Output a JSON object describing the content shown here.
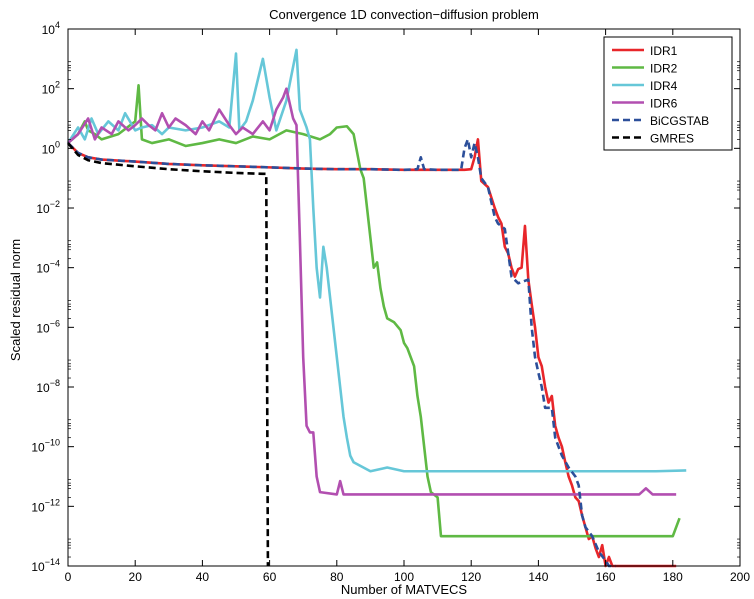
{
  "chart_data": {
    "type": "line",
    "title": "Convergence 1D convection−diffusion problem",
    "xlabel": "Number of MATVECS",
    "ylabel": "Scaled residual norm",
    "xlim": [
      0,
      200
    ],
    "ylim_log10": [
      -14,
      4
    ],
    "y_scale": "log",
    "x_ticks": [
      0,
      20,
      40,
      60,
      80,
      100,
      120,
      140,
      160,
      180,
      200
    ],
    "x_tick_labels": [
      "0",
      "20",
      "40",
      "60",
      "80",
      "100",
      "120",
      "140",
      "160",
      "180",
      "200"
    ],
    "y_ticks_log10": [
      -14,
      -12,
      -10,
      -8,
      -6,
      -4,
      -2,
      0,
      2,
      4
    ],
    "y_tick_labels": [
      {
        "base": "10",
        "exp": "−14"
      },
      {
        "base": "10",
        "exp": "−12"
      },
      {
        "base": "10",
        "exp": "−10"
      },
      {
        "base": "10",
        "exp": "−8"
      },
      {
        "base": "10",
        "exp": "−6"
      },
      {
        "base": "10",
        "exp": "−4"
      },
      {
        "base": "10",
        "exp": "−2"
      },
      {
        "base": "10",
        "exp": "0"
      },
      {
        "base": "10",
        "exp": "2"
      },
      {
        "base": "10",
        "exp": "4"
      }
    ],
    "grid": false,
    "legend_position": "top-right",
    "series": [
      {
        "name": "IDR1",
        "color": "#e8262a",
        "dash": "solid",
        "points": [
          [
            0,
            1.5
          ],
          [
            3,
            0.7
          ],
          [
            6,
            0.5
          ],
          [
            10,
            0.42
          ],
          [
            20,
            0.36
          ],
          [
            30,
            0.3
          ],
          [
            40,
            0.27
          ],
          [
            50,
            0.25
          ],
          [
            60,
            0.23
          ],
          [
            70,
            0.21
          ],
          [
            80,
            0.2
          ],
          [
            90,
            0.2
          ],
          [
            100,
            0.19
          ],
          [
            110,
            0.19
          ],
          [
            118,
            0.19
          ],
          [
            120,
            0.2
          ],
          [
            121,
            0.5
          ],
          [
            122,
            2.0
          ],
          [
            123,
            0.08
          ],
          [
            125,
            0.05
          ],
          [
            127,
            0.01
          ],
          [
            128,
            0.005
          ],
          [
            129,
            0.003
          ],
          [
            130,
            0.0005
          ],
          [
            131,
            0.0003
          ],
          [
            132,
            0.0001
          ],
          [
            133,
            5e-05
          ],
          [
            134,
            9e-05
          ],
          [
            135,
            0.0001
          ],
          [
            136,
            0.0025
          ],
          [
            137,
            4e-05
          ],
          [
            138,
            6e-06
          ],
          [
            139,
            1e-06
          ],
          [
            140,
            1e-07
          ],
          [
            141,
            5e-08
          ],
          [
            142,
            1e-08
          ],
          [
            143,
            3e-09
          ],
          [
            144,
            5e-09
          ],
          [
            145,
            5e-10
          ],
          [
            146,
            2e-10
          ],
          [
            147,
            1e-10
          ],
          [
            148,
            3e-11
          ],
          [
            149,
            1e-11
          ],
          [
            150,
            5e-12
          ],
          [
            151,
            2e-12
          ],
          [
            152,
            1.5e-12
          ],
          [
            153,
            5e-13
          ],
          [
            154,
            2e-13
          ],
          [
            155,
            8e-14
          ],
          [
            156,
            1e-13
          ],
          [
            157,
            4e-14
          ],
          [
            158,
            2e-14
          ],
          [
            159,
            5e-14
          ],
          [
            160,
            1e-14
          ],
          [
            161,
            2e-14
          ],
          [
            162,
            5e-15
          ],
          [
            163,
            3e-15
          ],
          [
            164,
            2e-15
          ],
          [
            170,
            2e-15
          ],
          [
            175,
            1.8e-15
          ],
          [
            181,
            1.8e-15
          ]
        ]
      },
      {
        "name": "IDR2",
        "color": "#5fb944",
        "dash": "solid",
        "points": [
          [
            0,
            1.5
          ],
          [
            3,
            3
          ],
          [
            5,
            8
          ],
          [
            6,
            4
          ],
          [
            8,
            3
          ],
          [
            10,
            2
          ],
          [
            15,
            3
          ],
          [
            20,
            8
          ],
          [
            21,
            130
          ],
          [
            22,
            2
          ],
          [
            25,
            1.5
          ],
          [
            30,
            2
          ],
          [
            35,
            1.2
          ],
          [
            40,
            1.5
          ],
          [
            45,
            2
          ],
          [
            50,
            1.5
          ],
          [
            55,
            2.5
          ],
          [
            60,
            2
          ],
          [
            65,
            4
          ],
          [
            70,
            3
          ],
          [
            75,
            2
          ],
          [
            78,
            3
          ],
          [
            80,
            5
          ],
          [
            83,
            5.5
          ],
          [
            85,
            3
          ],
          [
            87,
            0.2
          ],
          [
            88,
            0.1
          ],
          [
            89,
            0.01
          ],
          [
            90,
            0.001
          ],
          [
            91,
            0.0001
          ],
          [
            92,
            0.00015
          ],
          [
            93,
            2e-05
          ],
          [
            94,
            5e-06
          ],
          [
            95,
            2e-06
          ],
          [
            97,
            1.5e-06
          ],
          [
            99,
            8e-07
          ],
          [
            100,
            3e-07
          ],
          [
            101,
            2e-07
          ],
          [
            102,
            1e-07
          ],
          [
            103,
            5e-08
          ],
          [
            104,
            5e-09
          ],
          [
            105,
            1e-09
          ],
          [
            106,
            1e-10
          ],
          [
            107,
            1e-11
          ],
          [
            108,
            3e-12
          ],
          [
            110,
            2e-12
          ],
          [
            111,
            1e-13
          ],
          [
            115,
            1e-13
          ],
          [
            120,
            1e-13
          ],
          [
            130,
            1e-13
          ],
          [
            140,
            1e-13
          ],
          [
            150,
            1e-13
          ],
          [
            160,
            1e-13
          ],
          [
            170,
            1e-13
          ],
          [
            180,
            1e-13
          ],
          [
            182,
            4e-13
          ]
        ]
      },
      {
        "name": "IDR4",
        "color": "#66c7d8",
        "dash": "solid",
        "points": [
          [
            0,
            1.5
          ],
          [
            3,
            5
          ],
          [
            5,
            2
          ],
          [
            7,
            10
          ],
          [
            9,
            3
          ],
          [
            12,
            8
          ],
          [
            15,
            4
          ],
          [
            17,
            15
          ],
          [
            20,
            4
          ],
          [
            22,
            5
          ],
          [
            25,
            6
          ],
          [
            28,
            3
          ],
          [
            30,
            5
          ],
          [
            35,
            4
          ],
          [
            40,
            5
          ],
          [
            45,
            8
          ],
          [
            48,
            5
          ],
          [
            50,
            1500
          ],
          [
            51,
            4
          ],
          [
            53,
            8
          ],
          [
            55,
            40
          ],
          [
            58,
            1000
          ],
          [
            60,
            50
          ],
          [
            62,
            4
          ],
          [
            65,
            40
          ],
          [
            68,
            2000
          ],
          [
            69,
            20
          ],
          [
            71,
            5
          ],
          [
            72,
            2
          ],
          [
            73,
            0.01
          ],
          [
            74,
            0.0001
          ],
          [
            75,
            1e-05
          ],
          [
            76,
            0.0005
          ],
          [
            77,
            0.0001
          ],
          [
            78,
            1e-05
          ],
          [
            79,
            1e-06
          ],
          [
            80,
            1e-07
          ],
          [
            81,
            1e-08
          ],
          [
            82,
            1e-09
          ],
          [
            83,
            2e-10
          ],
          [
            84,
            5e-11
          ],
          [
            85,
            3e-11
          ],
          [
            90,
            1.5e-11
          ],
          [
            95,
            2e-11
          ],
          [
            100,
            1.5e-11
          ],
          [
            110,
            1.5e-11
          ],
          [
            120,
            1.5e-11
          ],
          [
            140,
            1.5e-11
          ],
          [
            160,
            1.5e-11
          ],
          [
            175,
            1.5e-11
          ],
          [
            184,
            1.6e-11
          ]
        ]
      },
      {
        "name": "IDR6",
        "color": "#b24fb0",
        "dash": "solid",
        "points": [
          [
            0,
            1.5
          ],
          [
            3,
            3
          ],
          [
            6,
            10
          ],
          [
            8,
            2
          ],
          [
            10,
            5
          ],
          [
            13,
            3
          ],
          [
            15,
            8
          ],
          [
            18,
            4
          ],
          [
            20,
            6
          ],
          [
            22,
            10
          ],
          [
            24,
            6
          ],
          [
            26,
            4
          ],
          [
            28,
            15
          ],
          [
            30,
            5
          ],
          [
            32,
            10
          ],
          [
            35,
            6
          ],
          [
            38,
            3
          ],
          [
            40,
            8
          ],
          [
            42,
            4
          ],
          [
            45,
            20
          ],
          [
            48,
            6
          ],
          [
            50,
            3
          ],
          [
            52,
            5
          ],
          [
            55,
            3
          ],
          [
            58,
            8
          ],
          [
            60,
            4
          ],
          [
            62,
            20
          ],
          [
            64,
            50
          ],
          [
            65,
            100
          ],
          [
            67,
            10
          ],
          [
            68,
            6
          ],
          [
            69,
            0.001
          ],
          [
            70,
            1e-07
          ],
          [
            71,
            5e-10
          ],
          [
            72,
            3e-10
          ],
          [
            73,
            3e-10
          ],
          [
            74,
            1e-11
          ],
          [
            75,
            3e-12
          ],
          [
            80,
            2.5e-12
          ],
          [
            81,
            7e-12
          ],
          [
            82,
            2.5e-12
          ],
          [
            90,
            2.5e-12
          ],
          [
            100,
            2.5e-12
          ],
          [
            120,
            2.5e-12
          ],
          [
            140,
            2.5e-12
          ],
          [
            160,
            2.5e-12
          ],
          [
            170,
            2.5e-12
          ],
          [
            172,
            4e-12
          ],
          [
            174,
            2.5e-12
          ],
          [
            181,
            2.5e-12
          ]
        ]
      },
      {
        "name": "BiCGSTAB",
        "color": "#2c4f9a",
        "dash": "dashed",
        "points": [
          [
            0,
            1.5
          ],
          [
            3,
            0.7
          ],
          [
            6,
            0.5
          ],
          [
            10,
            0.42
          ],
          [
            20,
            0.36
          ],
          [
            30,
            0.3
          ],
          [
            40,
            0.27
          ],
          [
            50,
            0.25
          ],
          [
            60,
            0.23
          ],
          [
            70,
            0.21
          ],
          [
            80,
            0.2
          ],
          [
            90,
            0.2
          ],
          [
            100,
            0.19
          ],
          [
            104,
            0.2
          ],
          [
            105,
            0.5
          ],
          [
            106,
            0.2
          ],
          [
            110,
            0.19
          ],
          [
            117,
            0.19
          ],
          [
            118,
            1.0
          ],
          [
            119,
            2.0
          ],
          [
            120,
            0.5
          ],
          [
            121,
            1.5
          ],
          [
            122,
            0.5
          ],
          [
            123,
            0.1
          ],
          [
            125,
            0.05
          ],
          [
            127,
            0.005
          ],
          [
            128,
            0.003
          ],
          [
            130,
            0.002
          ],
          [
            132,
            5e-05
          ],
          [
            134,
            3e-05
          ],
          [
            137,
            4e-05
          ],
          [
            138,
            1e-06
          ],
          [
            139,
            1e-07
          ],
          [
            140,
            3e-08
          ],
          [
            141,
            1e-08
          ],
          [
            142,
            2e-09
          ],
          [
            143,
            2e-09
          ],
          [
            144,
            2e-09
          ],
          [
            145,
            2e-10
          ],
          [
            147,
            5e-11
          ],
          [
            149,
            2e-11
          ],
          [
            151,
            1e-11
          ],
          [
            152,
            5e-12
          ],
          [
            153,
            5e-13
          ],
          [
            154,
            2e-13
          ],
          [
            156,
            1e-13
          ],
          [
            158,
            3e-14
          ],
          [
            160,
            1.5e-14
          ],
          [
            161,
            5e-15
          ],
          [
            162,
            3e-15
          ],
          [
            163,
            2e-15
          ]
        ]
      },
      {
        "name": "GMRES",
        "color": "#000000",
        "dash": "dashed",
        "points": [
          [
            0,
            1.5
          ],
          [
            3,
            0.6
          ],
          [
            6,
            0.4
          ],
          [
            10,
            0.32
          ],
          [
            20,
            0.25
          ],
          [
            30,
            0.2
          ],
          [
            40,
            0.17
          ],
          [
            50,
            0.15
          ],
          [
            58,
            0.14
          ],
          [
            59,
            0.14
          ],
          [
            59.5,
            1e-15
          ]
        ]
      }
    ]
  }
}
